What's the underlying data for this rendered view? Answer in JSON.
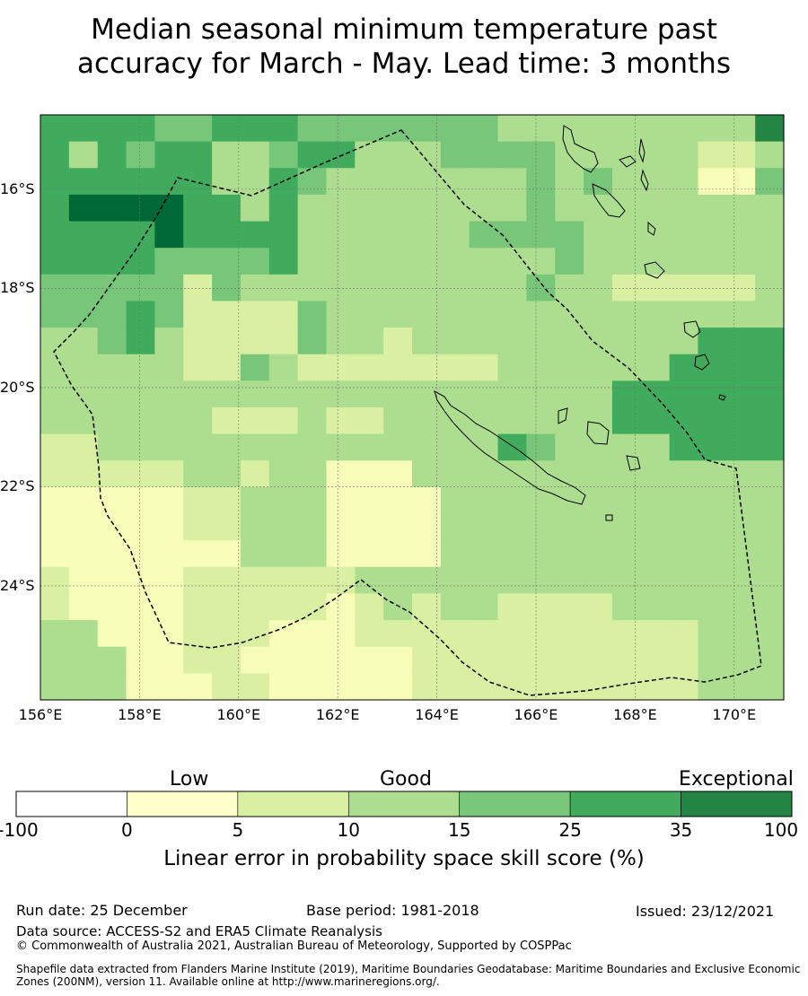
{
  "title": {
    "line1": "Median seasonal minimum temperature past",
    "line2": "accuracy for March - May. Lead time: 3 months"
  },
  "map": {
    "lon_ticks": [
      "156°E",
      "158°E",
      "160°E",
      "162°E",
      "164°E",
      "166°E",
      "168°E",
      "170°E"
    ],
    "lat_ticks": [
      "16°S",
      "18°S",
      "20°S",
      "22°S",
      "24°S"
    ],
    "grid_rows": [
      "55554455544444443333333336",
      "53545533455333444433333223",
      "55555533543333333434333114",
      "57777553533333333433333333",
      "55557555533333344443333333",
      "55554444533333333343333333",
      "44444243333333333433222223",
      "44454222243333333333333333",
      "33453222243323333333333555",
      "33333224322222223333335555",
      "33333333333333333333555555",
      "33333322232233333333555555",
      "22333333333333335433335555",
      "22222332331113333333333333",
      "11111223331111333333333333",
      "11111223331111333333333333",
      "11111113331111333333333333",
      "21111222222333333333333333",
      "21111222221232332222333333",
      "33111222111222222222222333",
      "33311221111112222222222333",
      "33311122111112222222222333"
    ],
    "palette": [
      "#ffffcc",
      "#f7fcb9",
      "#d9f0a3",
      "#addd8e",
      "#78c679",
      "#41ab5d",
      "#238443",
      "#006837"
    ],
    "grid_color": "#707070",
    "boundary_color": "#000000"
  },
  "colorbar": {
    "categories": [
      "Low",
      "Good",
      "Exceptional"
    ],
    "ticks": [
      "-100",
      "0",
      "5",
      "10",
      "15",
      "25",
      "35",
      "100"
    ],
    "colors": [
      "#ffffff",
      "#ffffcc",
      "#d9f0a3",
      "#addd8e",
      "#78c679",
      "#41ab5d",
      "#238443"
    ],
    "label": "Linear error in probability space skill score (%)"
  },
  "footer": {
    "run_date": "Run date: 25 December",
    "base_period": "Base period: 1981-2018",
    "issued": "Issued: 23/12/2021",
    "data_source": "Data source: ACCESS-S2 and ERA5 Climate Reanalysis",
    "copyright": "© Commonwealth of Australia 2021, Australian Bureau of Meteorology, Supported by COSPPac",
    "shapefile": "Shapefile data extracted from Flanders Marine Institute (2019), Maritime Boundaries Geodatabase: Maritime Boundaries and Exclusive Economic Zones (200NM), version 11. Available online at http://www.marineregions.org/."
  }
}
